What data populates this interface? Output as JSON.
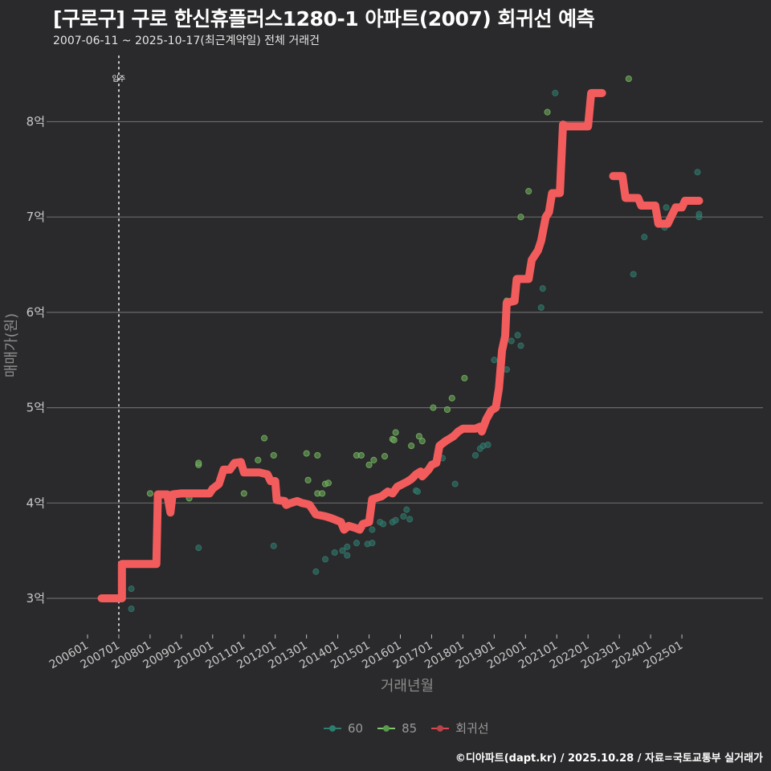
{
  "header": {
    "title": "[구로구] 구로 한신휴플러스1280-1 아파트(2007) 회귀선 예측",
    "subtitle": "2007-06-11 ~ 2025-10-17(최근계약일) 전체 거래건"
  },
  "colors": {
    "background": "#2a292b",
    "grid": "#6a6a6a",
    "series_60": "#2e7d6e",
    "series_85": "#7cc86a",
    "regression": "#f25c5c",
    "vline": "#cfcfcf"
  },
  "legend": {
    "items": [
      {
        "label": "60",
        "color": "#2e7d6e"
      },
      {
        "label": "85",
        "color": "#7cc86a"
      },
      {
        "label": "회귀선",
        "color": "#f25c5c"
      }
    ]
  },
  "caption": "©디아파트(dapt.kr) / 2025.10.28 / 자료=국토교통부 실거래가",
  "chart_data": {
    "type": "line",
    "title": "[구로구] 구로 한신휴플러스1280-1 아파트(2007) 회귀선 예측",
    "subtitle": "2007-06-11 ~ 2025-10-17(최근계약일) 전체 거래건",
    "xlabel": "거래년월",
    "ylabel": "매매가(원)",
    "x_ticks": [
      "200601",
      "200701",
      "200801",
      "200901",
      "201001",
      "201101",
      "201201",
      "201301",
      "201401",
      "201501",
      "201601",
      "201701",
      "201801",
      "201901",
      "202001",
      "202101",
      "202201",
      "202301",
      "202401",
      "202501"
    ],
    "y_ticks": [
      "3억",
      "4억",
      "5억",
      "6억",
      "7억",
      "8억"
    ],
    "y_tick_values": [
      3,
      4,
      5,
      6,
      7,
      8
    ],
    "ylim": [
      2.65,
      8.65
    ],
    "xlim": [
      2005.0,
      2027.4
    ],
    "grid": true,
    "legend_position": "bottom",
    "annotation": {
      "label": "입주",
      "x": 2007.0
    },
    "series": [
      {
        "name": "회귀선",
        "type": "step-line",
        "points": [
          [
            2006.45,
            3.0
          ],
          [
            2007.1,
            3.0
          ],
          [
            2007.1,
            3.36
          ],
          [
            2008.2,
            3.36
          ],
          [
            2008.25,
            4.09
          ],
          [
            2008.55,
            4.09
          ],
          [
            2008.65,
            3.9
          ],
          [
            2008.72,
            4.09
          ],
          [
            2009.0,
            4.1
          ],
          [
            2009.9,
            4.1
          ],
          [
            2010.0,
            4.15
          ],
          [
            2010.2,
            4.2
          ],
          [
            2010.35,
            4.35
          ],
          [
            2010.55,
            4.35
          ],
          [
            2010.7,
            4.42
          ],
          [
            2010.9,
            4.43
          ],
          [
            2011.0,
            4.32
          ],
          [
            2011.5,
            4.32
          ],
          [
            2011.75,
            4.3
          ],
          [
            2011.85,
            4.23
          ],
          [
            2012.0,
            4.23
          ],
          [
            2012.05,
            4.03
          ],
          [
            2012.3,
            4.02
          ],
          [
            2012.35,
            3.98
          ],
          [
            2012.5,
            4.0
          ],
          [
            2012.7,
            4.02
          ],
          [
            2012.85,
            4.0
          ],
          [
            2013.0,
            3.99
          ],
          [
            2013.1,
            3.98
          ],
          [
            2013.3,
            3.88
          ],
          [
            2013.6,
            3.86
          ],
          [
            2013.8,
            3.84
          ],
          [
            2014.1,
            3.8
          ],
          [
            2014.2,
            3.72
          ],
          [
            2014.35,
            3.76
          ],
          [
            2014.55,
            3.74
          ],
          [
            2014.7,
            3.72
          ],
          [
            2014.8,
            3.78
          ],
          [
            2015.0,
            3.8
          ],
          [
            2015.1,
            4.04
          ],
          [
            2015.4,
            4.07
          ],
          [
            2015.6,
            4.12
          ],
          [
            2015.75,
            4.1
          ],
          [
            2015.9,
            4.17
          ],
          [
            2016.2,
            4.22
          ],
          [
            2016.35,
            4.25
          ],
          [
            2016.5,
            4.3
          ],
          [
            2016.65,
            4.33
          ],
          [
            2016.7,
            4.28
          ],
          [
            2016.9,
            4.35
          ],
          [
            2017.0,
            4.4
          ],
          [
            2017.15,
            4.42
          ],
          [
            2017.25,
            4.6
          ],
          [
            2017.45,
            4.65
          ],
          [
            2017.6,
            4.68
          ],
          [
            2017.7,
            4.7
          ],
          [
            2017.85,
            4.75
          ],
          [
            2018.0,
            4.78
          ],
          [
            2018.4,
            4.78
          ],
          [
            2018.55,
            4.8
          ],
          [
            2018.6,
            4.75
          ],
          [
            2018.75,
            4.88
          ],
          [
            2018.9,
            4.97
          ],
          [
            2019.05,
            5.0
          ],
          [
            2019.15,
            5.2
          ],
          [
            2019.25,
            5.6
          ],
          [
            2019.35,
            5.75
          ],
          [
            2019.4,
            6.1
          ],
          [
            2019.65,
            6.12
          ],
          [
            2019.72,
            6.35
          ],
          [
            2020.1,
            6.35
          ],
          [
            2020.2,
            6.55
          ],
          [
            2020.4,
            6.65
          ],
          [
            2020.5,
            6.75
          ],
          [
            2020.65,
            7.0
          ],
          [
            2020.75,
            7.05
          ],
          [
            2020.85,
            7.25
          ],
          [
            2021.1,
            7.25
          ],
          [
            2021.2,
            7.97
          ],
          [
            2021.3,
            7.95
          ],
          [
            2022.0,
            7.95
          ],
          [
            2022.1,
            8.3
          ],
          [
            2022.45,
            8.3
          ]
        ],
        "segment2": [
          [
            2022.8,
            7.43
          ],
          [
            2023.1,
            7.43
          ],
          [
            2023.2,
            7.2
          ],
          [
            2023.6,
            7.2
          ],
          [
            2023.7,
            7.12
          ],
          [
            2024.15,
            7.12
          ],
          [
            2024.25,
            6.93
          ],
          [
            2024.55,
            6.93
          ],
          [
            2024.65,
            7.0
          ],
          [
            2024.8,
            7.1
          ],
          [
            2025.0,
            7.1
          ],
          [
            2025.1,
            7.17
          ],
          [
            2025.55,
            7.17
          ]
        ]
      },
      {
        "name": "60",
        "type": "scatter",
        "points": [
          [
            2007.4,
            3.1
          ],
          [
            2007.4,
            2.89
          ],
          [
            2009.55,
            3.53
          ],
          [
            2011.95,
            3.55
          ],
          [
            2013.3,
            3.28
          ],
          [
            2013.6,
            3.41
          ],
          [
            2013.9,
            3.48
          ],
          [
            2014.15,
            3.5
          ],
          [
            2014.3,
            3.45
          ],
          [
            2014.3,
            3.54
          ],
          [
            2014.6,
            3.58
          ],
          [
            2014.95,
            3.57
          ],
          [
            2015.1,
            3.58
          ],
          [
            2015.1,
            3.72
          ],
          [
            2015.35,
            3.8
          ],
          [
            2015.45,
            3.78
          ],
          [
            2015.75,
            3.8
          ],
          [
            2015.85,
            3.82
          ],
          [
            2016.1,
            3.86
          ],
          [
            2016.2,
            3.93
          ],
          [
            2016.3,
            3.83
          ],
          [
            2016.5,
            4.13
          ],
          [
            2016.55,
            4.12
          ],
          [
            2017.1,
            4.42
          ],
          [
            2017.35,
            4.47
          ],
          [
            2017.75,
            4.2
          ],
          [
            2018.4,
            4.5
          ],
          [
            2018.55,
            4.57
          ],
          [
            2018.65,
            4.6
          ],
          [
            2018.8,
            4.61
          ],
          [
            2019.0,
            5.5
          ],
          [
            2019.4,
            5.4
          ],
          [
            2019.55,
            5.7
          ],
          [
            2019.75,
            5.76
          ],
          [
            2019.85,
            5.65
          ],
          [
            2020.5,
            6.05
          ],
          [
            2020.55,
            6.25
          ],
          [
            2020.95,
            8.3
          ],
          [
            2022.4,
            8.29
          ],
          [
            2023.45,
            6.4
          ],
          [
            2023.8,
            6.79
          ],
          [
            2024.5,
            7.1
          ],
          [
            2024.45,
            6.89
          ],
          [
            2025.5,
            7.47
          ],
          [
            2025.55,
            7.0
          ],
          [
            2025.55,
            7.03
          ]
        ]
      },
      {
        "name": "85",
        "type": "scatter",
        "points": [
          [
            2008.0,
            4.1
          ],
          [
            2009.25,
            4.05
          ],
          [
            2009.55,
            4.4
          ],
          [
            2009.55,
            4.42
          ],
          [
            2011.0,
            4.1
          ],
          [
            2011.45,
            4.45
          ],
          [
            2011.65,
            4.68
          ],
          [
            2011.95,
            4.5
          ],
          [
            2012.35,
            4.01
          ],
          [
            2013.0,
            4.52
          ],
          [
            2013.05,
            4.24
          ],
          [
            2013.35,
            4.5
          ],
          [
            2013.35,
            4.1
          ],
          [
            2013.5,
            4.1
          ],
          [
            2013.6,
            4.2
          ],
          [
            2013.7,
            4.21
          ],
          [
            2014.6,
            4.5
          ],
          [
            2014.75,
            4.5
          ],
          [
            2015.0,
            4.4
          ],
          [
            2015.15,
            4.45
          ],
          [
            2015.5,
            4.49
          ],
          [
            2015.75,
            4.67
          ],
          [
            2015.8,
            4.66
          ],
          [
            2015.85,
            4.74
          ],
          [
            2016.35,
            4.6
          ],
          [
            2016.6,
            4.7
          ],
          [
            2016.7,
            4.65
          ],
          [
            2017.05,
            5.0
          ],
          [
            2017.5,
            4.98
          ],
          [
            2017.65,
            5.1
          ],
          [
            2018.05,
            5.31
          ],
          [
            2019.4,
            6.12
          ],
          [
            2019.85,
            7.0
          ],
          [
            2020.1,
            7.27
          ],
          [
            2020.7,
            8.1
          ],
          [
            2023.3,
            8.45
          ]
        ]
      }
    ]
  }
}
